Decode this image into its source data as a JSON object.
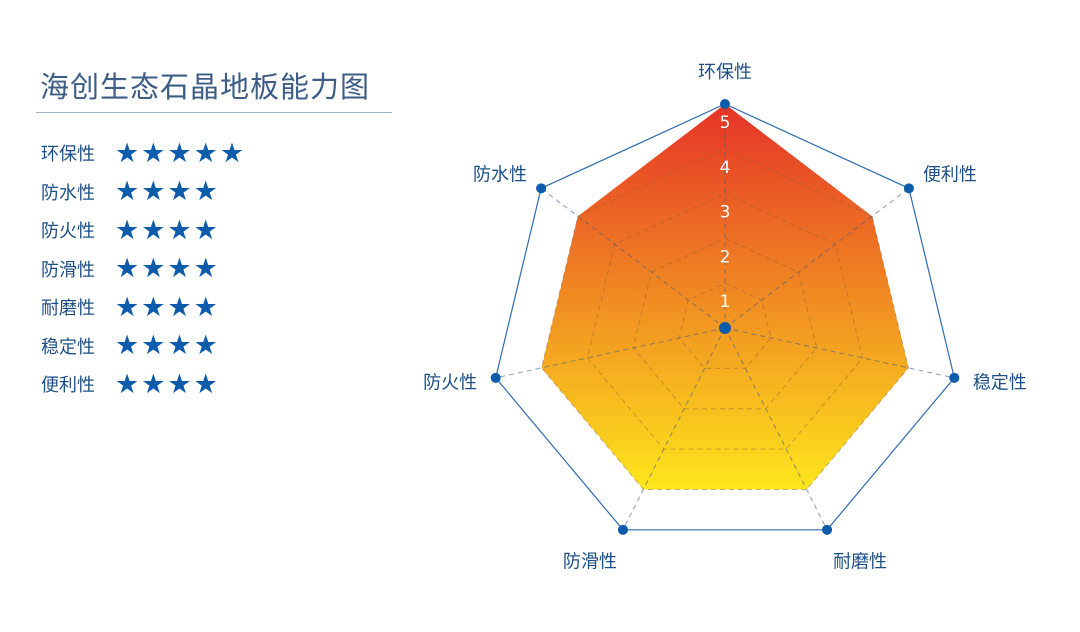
{
  "title": "海创生态石晶地板能力图",
  "ratings": [
    {
      "label": "环保性",
      "stars": 5
    },
    {
      "label": "防水性",
      "stars": 4
    },
    {
      "label": "防火性",
      "stars": 4
    },
    {
      "label": "防滑性",
      "stars": 4
    },
    {
      "label": "耐磨性",
      "stars": 4
    },
    {
      "label": "稳定性",
      "stars": 4
    },
    {
      "label": "便利性",
      "stars": 4
    }
  ],
  "chart_data": {
    "type": "radar",
    "axes": [
      "环保性",
      "便利性",
      "稳定性",
      "耐磨性",
      "防滑性",
      "防火性",
      "防水性"
    ],
    "values": [
      5,
      4,
      4,
      4,
      4,
      4,
      4
    ],
    "ticks": [
      "1",
      "2",
      "3",
      "4",
      "5"
    ],
    "rlim": [
      0,
      5
    ],
    "grid": true,
    "colors": {
      "fill_top": "#e53328",
      "fill_bottom": "#fde61c",
      "outline": "#2f6bb0",
      "marker": "#0d5bab"
    }
  }
}
